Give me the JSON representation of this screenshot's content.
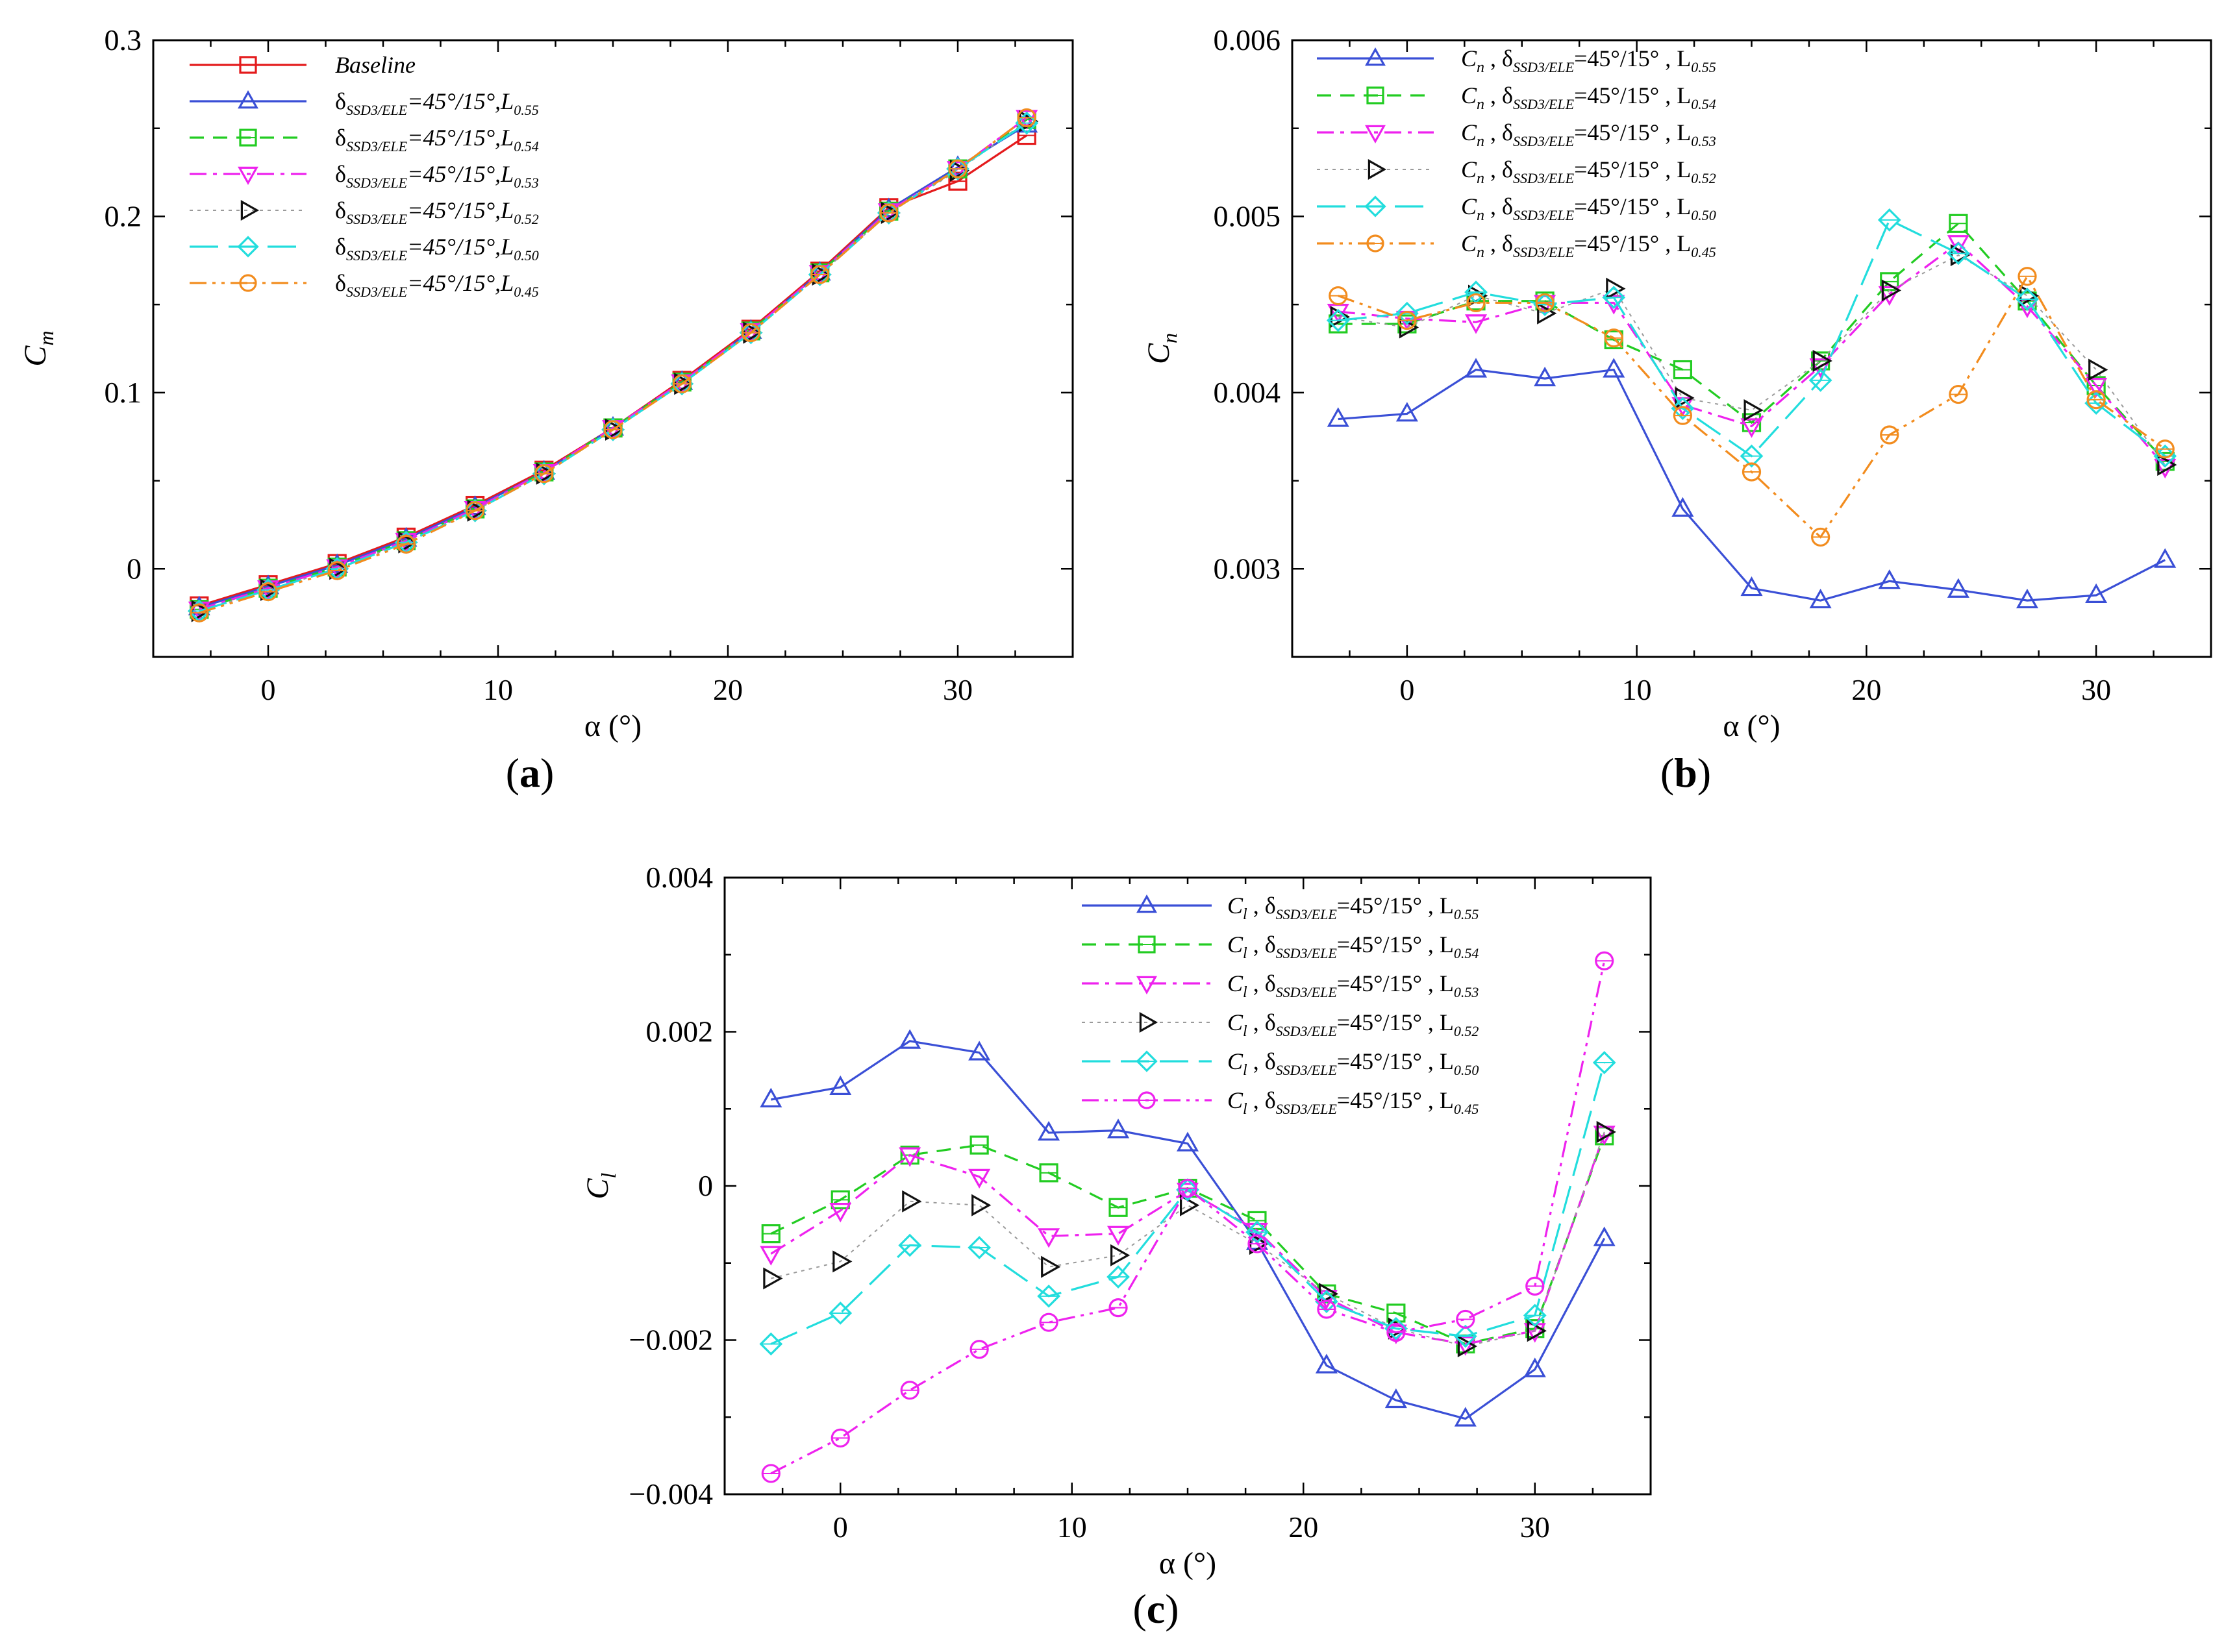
{
  "panels": [
    {
      "id": "a",
      "caption_letter": "a",
      "ylabel": "C",
      "ylabel_sub": "m",
      "xlabel": "α (°)",
      "legend_entries": [
        {
          "prefix": "",
          "sub": "",
          "mid": "Baseline",
          "lsub": ""
        },
        {
          "prefix": "δ",
          "sub": "SSD3/ELE",
          "mid": "=45°/15°,L",
          "lsub": "0.55"
        },
        {
          "prefix": "δ",
          "sub": "SSD3/ELE",
          "mid": "=45°/15°,L",
          "lsub": "0.54"
        },
        {
          "prefix": "δ",
          "sub": "SSD3/ELE",
          "mid": "=45°/15°,L",
          "lsub": "0.53"
        },
        {
          "prefix": "δ",
          "sub": "SSD3/ELE",
          "mid": "=45°/15°,L",
          "lsub": "0.52"
        },
        {
          "prefix": "δ",
          "sub": "SSD3/ELE",
          "mid": "=45°/15°,L",
          "lsub": "0.50"
        },
        {
          "prefix": "δ",
          "sub": "SSD3/ELE",
          "mid": "=45°/15°,L",
          "lsub": "0.45"
        }
      ]
    },
    {
      "id": "b",
      "caption_letter": "b",
      "ylabel": "C",
      "ylabel_sub": "n",
      "xlabel": "α (°)",
      "legend_entries": [
        {
          "prefix": "C",
          "psub": "n",
          "sub": "SSD3/ELE",
          "mid": "=45°/15° , L",
          "lsub": "0.55"
        },
        {
          "prefix": "C",
          "psub": "n",
          "sub": "SSD3/ELE",
          "mid": "=45°/15° , L",
          "lsub": "0.54"
        },
        {
          "prefix": "C",
          "psub": "n",
          "sub": "SSD3/ELE",
          "mid": "=45°/15° , L",
          "lsub": "0.53"
        },
        {
          "prefix": "C",
          "psub": "n",
          "sub": "SSD3/ELE",
          "mid": "=45°/15° , L",
          "lsub": "0.52"
        },
        {
          "prefix": "C",
          "psub": "n",
          "sub": "SSD3/ELE",
          "mid": "=45°/15° , L",
          "lsub": "0.50"
        },
        {
          "prefix": "C",
          "psub": "n",
          "sub": "SSD3/ELE",
          "mid": "=45°/15° , L",
          "lsub": "0.45"
        }
      ]
    },
    {
      "id": "c",
      "caption_letter": "c",
      "ylabel": "C",
      "ylabel_sub": "l",
      "xlabel": "α (°)",
      "legend_entries": [
        {
          "prefix": "C",
          "psub": "l",
          "sub": "SSD3/ELE",
          "mid": "=45°/15° , L",
          "lsub": "0.55"
        },
        {
          "prefix": "C",
          "psub": "l",
          "sub": "SSD3/ELE",
          "mid": "=45°/15° , L",
          "lsub": "0.54"
        },
        {
          "prefix": "C",
          "psub": "l",
          "sub": "SSD3/ELE",
          "mid": "=45°/15° , L",
          "lsub": "0.53"
        },
        {
          "prefix": "C",
          "psub": "l",
          "sub": "SSD3/ELE",
          "mid": "=45°/15° , L",
          "lsub": "0.52"
        },
        {
          "prefix": "C",
          "psub": "l",
          "sub": "SSD3/ELE",
          "mid": "=45°/15° , L",
          "lsub": "0.50"
        },
        {
          "prefix": "C",
          "psub": "l",
          "sub": "SSD3/ELE",
          "mid": "=45°/15° , L",
          "lsub": "0.45"
        }
      ]
    }
  ],
  "chart_data": [
    {
      "type": "line",
      "panel": "a",
      "x": [
        -3,
        0,
        3,
        6,
        9,
        12,
        15,
        18,
        21,
        24,
        27,
        30,
        33
      ],
      "xlim": [
        -5,
        35
      ],
      "ylim": [
        -0.05,
        0.3
      ],
      "xticks": [
        0,
        10,
        20,
        30
      ],
      "yticks": [
        0,
        0.1,
        0.2,
        0.3
      ],
      "ytick_labels": [
        "0",
        "0.1",
        "0.2",
        "0.3"
      ],
      "legend_position": "top-left",
      "series": [
        {
          "name": "Baseline",
          "color": "#e41a1c",
          "dash": "solid",
          "marker": "square",
          "values": [
            -0.021,
            -0.009,
            0.003,
            0.018,
            0.036,
            0.056,
            0.08,
            0.107,
            0.136,
            0.169,
            0.205,
            0.22,
            0.246
          ]
        },
        {
          "name": "δSSD3/ELE=45°/15°,L0.55",
          "color": "#3a4fd6",
          "dash": "solid",
          "marker": "triangle-up",
          "values": [
            -0.022,
            -0.01,
            0.002,
            0.017,
            0.035,
            0.055,
            0.08,
            0.106,
            0.135,
            0.168,
            0.204,
            0.228,
            0.252
          ]
        },
        {
          "name": "δSSD3/ELE=45°/15°,L0.54",
          "color": "#22cc22",
          "dash": "dashed",
          "marker": "square",
          "values": [
            -0.023,
            -0.011,
            0.001,
            0.016,
            0.034,
            0.055,
            0.08,
            0.106,
            0.135,
            0.168,
            0.203,
            0.227,
            0.255
          ]
        },
        {
          "name": "δSSD3/ELE=45°/15°,L0.53",
          "color": "#ee22ee",
          "dash": "dashdot",
          "marker": "triangle-down",
          "values": [
            -0.023,
            -0.011,
            0.001,
            0.016,
            0.034,
            0.055,
            0.08,
            0.106,
            0.135,
            0.168,
            0.203,
            0.227,
            0.256
          ]
        },
        {
          "name": "δSSD3/ELE=45°/15°,L0.52",
          "color": "#111111",
          "dash": "dotted",
          "marker": "triangle-right",
          "values": [
            -0.024,
            -0.012,
            0.0,
            0.015,
            0.033,
            0.054,
            0.079,
            0.105,
            0.134,
            0.167,
            0.202,
            0.226,
            0.254
          ]
        },
        {
          "name": "δSSD3/ELE=45°/15°,L0.50",
          "color": "#22dddd",
          "dash": "longdash",
          "marker": "diamond",
          "values": [
            -0.024,
            -0.012,
            0.0,
            0.015,
            0.033,
            0.054,
            0.079,
            0.105,
            0.134,
            0.167,
            0.202,
            0.227,
            0.253
          ]
        },
        {
          "name": "δSSD3/ELE=45°/15°,L0.45",
          "color": "#f28c1e",
          "dash": "dashdotdot",
          "marker": "circle",
          "values": [
            -0.025,
            -0.013,
            -0.001,
            0.014,
            0.033,
            0.054,
            0.079,
            0.105,
            0.134,
            0.167,
            0.202,
            0.227,
            0.256
          ]
        }
      ]
    },
    {
      "type": "line",
      "panel": "b",
      "x": [
        -3,
        0,
        3,
        6,
        9,
        12,
        15,
        18,
        21,
        24,
        27,
        30,
        33
      ],
      "xlim": [
        -5,
        35
      ],
      "ylim": [
        0.0025,
        0.006
      ],
      "xticks": [
        0,
        10,
        20,
        30
      ],
      "yticks": [
        0.003,
        0.004,
        0.005,
        0.006
      ],
      "ytick_labels": [
        "0.003",
        "0.004",
        "0.005",
        "0.006"
      ],
      "legend_position": "top-left",
      "series": [
        {
          "name": "Cn , δSSD3/ELE=45°/15° , L0.55",
          "color": "#3a4fd6",
          "dash": "solid",
          "marker": "triangle-up",
          "values": [
            0.00385,
            0.00388,
            0.00413,
            0.00408,
            0.00413,
            0.00334,
            0.00289,
            0.00282,
            0.00293,
            0.00288,
            0.00282,
            0.00285,
            0.00305
          ]
        },
        {
          "name": "Cn , δSSD3/ELE=45°/15° , L0.54",
          "color": "#22cc22",
          "dash": "dashed",
          "marker": "square",
          "values": [
            0.00439,
            0.00439,
            0.00452,
            0.00452,
            0.0043,
            0.00413,
            0.00383,
            0.00418,
            0.00463,
            0.00496,
            0.00452,
            0.00404,
            0.00361
          ]
        },
        {
          "name": "Cn , δSSD3/ELE=45°/15° , L0.53",
          "color": "#ee22ee",
          "dash": "dashdot",
          "marker": "triangle-down",
          "values": [
            0.00446,
            0.00442,
            0.0044,
            0.00451,
            0.00451,
            0.00393,
            0.00381,
            0.00415,
            0.00456,
            0.00485,
            0.00449,
            0.00404,
            0.00358
          ]
        },
        {
          "name": "Cn , δSSD3/ELE=45°/15° , L0.52",
          "color": "#111111",
          "dash": "dotted",
          "marker": "triangle-right",
          "values": [
            0.00443,
            0.00437,
            0.00455,
            0.00445,
            0.00459,
            0.00397,
            0.0039,
            0.00418,
            0.00458,
            0.00478,
            0.00455,
            0.00413,
            0.00359
          ]
        },
        {
          "name": "Cn , δSSD3/ELE=45°/15° , L0.50",
          "color": "#22dddd",
          "dash": "longdash",
          "marker": "diamond",
          "values": [
            0.00441,
            0.00445,
            0.00457,
            0.0045,
            0.00454,
            0.00391,
            0.00364,
            0.00407,
            0.00498,
            0.00479,
            0.00453,
            0.00394,
            0.00364
          ]
        },
        {
          "name": "Cn , δSSD3/ELE=45°/15° , L0.45",
          "color": "#f28c1e",
          "dash": "dashdotdot",
          "marker": "circle",
          "values": [
            0.00455,
            0.00441,
            0.00451,
            0.00451,
            0.00431,
            0.00387,
            0.00355,
            0.00318,
            0.00376,
            0.00399,
            0.00466,
            0.00396,
            0.00368
          ]
        }
      ]
    },
    {
      "type": "line",
      "panel": "c",
      "x": [
        -3,
        0,
        3,
        6,
        9,
        12,
        15,
        18,
        21,
        24,
        27,
        30,
        33
      ],
      "xlim": [
        -5,
        35
      ],
      "ylim": [
        -0.004,
        0.004
      ],
      "xticks": [
        0,
        10,
        20,
        30
      ],
      "yticks": [
        -0.004,
        -0.002,
        0,
        0.002,
        0.004
      ],
      "ytick_labels": [
        "−0.004",
        "−0.002",
        "0",
        "0.002",
        "0.004"
      ],
      "legend_position": "top-right",
      "series": [
        {
          "name": "Cl , δSSD3/ELE=45°/15° , L0.55",
          "color": "#3a4fd6",
          "dash": "solid",
          "marker": "triangle-up",
          "values": [
            0.00112,
            0.00128,
            0.00188,
            0.00173,
            0.00069,
            0.00072,
            0.00055,
            -0.00073,
            -0.00233,
            -0.00278,
            -0.00302,
            -0.00238,
            -0.00068
          ]
        },
        {
          "name": "Cl , δSSD3/ELE=45°/15° , L0.54",
          "color": "#22cc22",
          "dash": "dashed",
          "marker": "square",
          "values": [
            -0.00062,
            -0.00018,
            0.0004,
            0.00053,
            0.00017,
            -0.00028,
            -3e-05,
            -0.00045,
            -0.0014,
            -0.00165,
            -0.00205,
            -0.00185,
            0.00065
          ]
        },
        {
          "name": "Cl , δSSD3/ELE=45°/15° , L0.53",
          "color": "#ee22ee",
          "dash": "dashdot",
          "marker": "triangle-down",
          "values": [
            -0.00088,
            -0.00032,
            0.0004,
            0.00012,
            -0.00065,
            -0.00062,
            -6e-05,
            -0.00058,
            -0.00145,
            -0.0019,
            -0.00205,
            -0.00188,
            0.00068
          ]
        },
        {
          "name": "Cl , δSSD3/ELE=45°/15° , L0.52",
          "color": "#111111",
          "dash": "dotted",
          "marker": "triangle-right",
          "values": [
            -0.0012,
            -0.00098,
            -0.0002,
            -0.00025,
            -0.00105,
            -0.0009,
            -0.00025,
            -0.00075,
            -0.0014,
            -0.00185,
            -0.00208,
            -0.00188,
            0.0007
          ]
        },
        {
          "name": "Cl , δSSD3/ELE=45°/15° , L0.50",
          "color": "#22dddd",
          "dash": "longdash",
          "marker": "diamond",
          "values": [
            -0.00205,
            -0.00165,
            -0.00077,
            -0.0008,
            -0.00143,
            -0.00118,
            -5e-05,
            -0.0006,
            -0.0015,
            -0.00185,
            -0.00195,
            -0.00168,
            0.0016
          ]
        },
        {
          "name": "Cl , δSSD3/ELE=45°/15° , L0.45",
          "color": "#ee22ee",
          "dash": "dashdotdot",
          "marker": "circle",
          "values": [
            -0.00373,
            -0.00327,
            -0.00265,
            -0.00212,
            -0.00177,
            -0.00158,
            -3e-05,
            -0.00075,
            -0.0016,
            -0.0019,
            -0.00173,
            -0.0013,
            0.00292
          ]
        }
      ]
    }
  ]
}
